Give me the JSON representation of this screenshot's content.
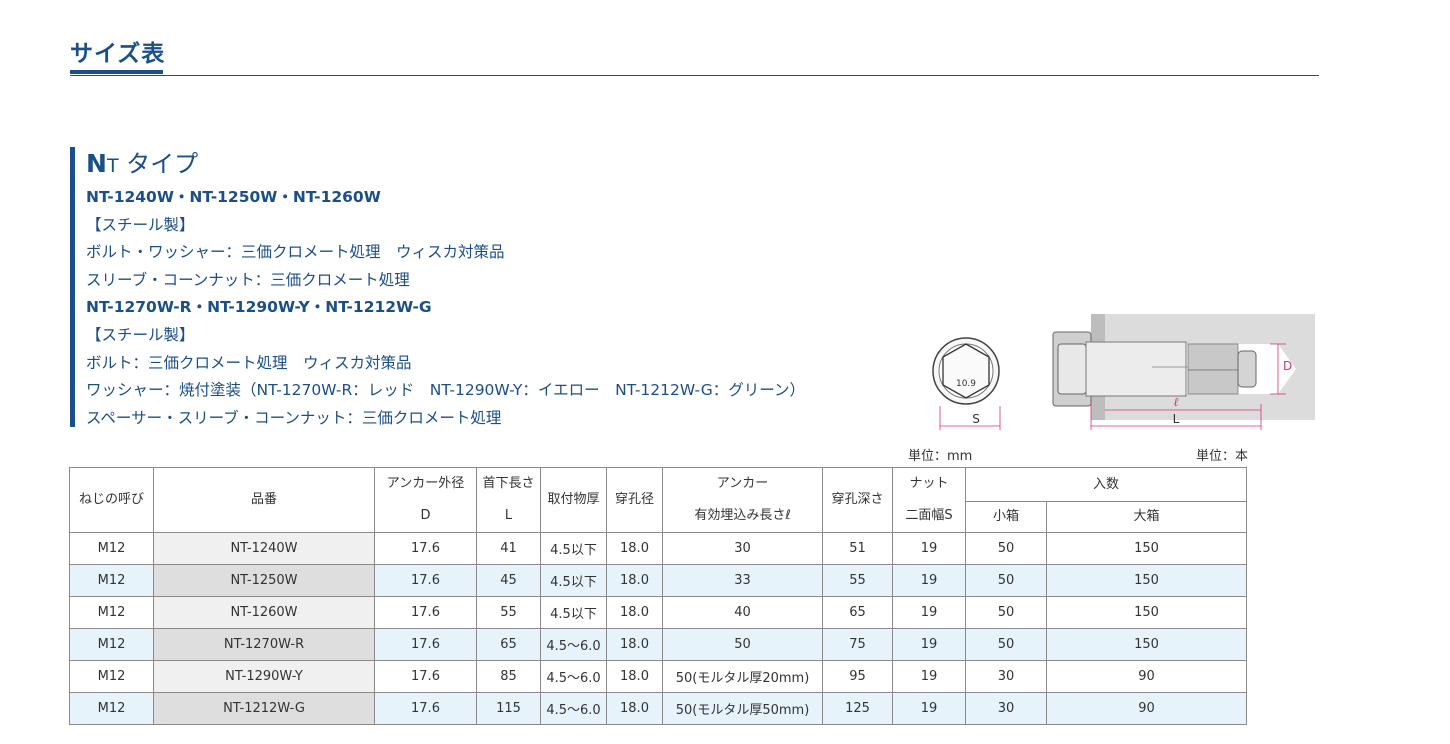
{
  "page": {
    "title": "サイズ表"
  },
  "type_block": {
    "heading_main": "N",
    "heading_sub": "T",
    "heading_rest": " タイプ",
    "lines": [
      "NT-1240W・NT-1250W・NT-1260W",
      "【スチール製】",
      "ボルト・ワッシャー：三価クロメート処理　ウィスカ対策品",
      "スリーブ・コーンナット：三価クロメート処理",
      "NT-1270W-R・NT-1290W-Y・NT-1212W-G",
      "【スチール製】",
      "ボルト：三価クロメート処理　ウィスカ対策品",
      "ワッシャー：焼付塗装（NT-1270W-R：レッド　NT-1290W-Y：イエロー　NT-1212W-G：グリーン）",
      "スペーサー・スリーブ・コーンナット：三価クロメート処理"
    ]
  },
  "diagram": {
    "bolt_mark": "10.9",
    "label_s": "S",
    "label_d": "D",
    "label_l_small": "ℓ",
    "label_l": "L"
  },
  "units": {
    "left": "単位：mm",
    "right": "単位：本"
  },
  "table": {
    "headers": {
      "thread": "ねじの呼び",
      "part_no": "品番",
      "outer_d_1": "アンカー外径",
      "outer_d_2": "D",
      "length_1": "首下長さ",
      "length_2": "L",
      "fixture": "取付物厚",
      "hole_d": "穿孔径",
      "embed_1": "アンカー",
      "embed_2": "有効埋込み長さℓ",
      "depth": "穿孔深さ",
      "nut_1": "ナット",
      "nut_2": "二面幅S",
      "qty": "入数",
      "qty_small": "小箱",
      "qty_large": "大箱"
    },
    "rows": [
      {
        "thread": "M12",
        "part_no": "NT-1240W",
        "outer_d": "17.6",
        "length": "41",
        "fixture": "4.5以下",
        "hole_d": "18.0",
        "embed": "30",
        "depth": "51",
        "nut": "19",
        "small": "50",
        "large": "150"
      },
      {
        "thread": "M12",
        "part_no": "NT-1250W",
        "outer_d": "17.6",
        "length": "45",
        "fixture": "4.5以下",
        "hole_d": "18.0",
        "embed": "33",
        "depth": "55",
        "nut": "19",
        "small": "50",
        "large": "150"
      },
      {
        "thread": "M12",
        "part_no": "NT-1260W",
        "outer_d": "17.6",
        "length": "55",
        "fixture": "4.5以下",
        "hole_d": "18.0",
        "embed": "40",
        "depth": "65",
        "nut": "19",
        "small": "50",
        "large": "150"
      },
      {
        "thread": "M12",
        "part_no": "NT-1270W-R",
        "outer_d": "17.6",
        "length": "65",
        "fixture": "4.5～6.0",
        "hole_d": "18.0",
        "embed": "50",
        "depth": "75",
        "nut": "19",
        "small": "50",
        "large": "150"
      },
      {
        "thread": "M12",
        "part_no": "NT-1290W-Y",
        "outer_d": "17.6",
        "length": "85",
        "fixture": "4.5～6.0",
        "hole_d": "18.0",
        "embed": "50(モルタル厚20mm)",
        "depth": "95",
        "nut": "19",
        "small": "30",
        "large": "90"
      },
      {
        "thread": "M12",
        "part_no": "NT-1212W-G",
        "outer_d": "17.6",
        "length": "115",
        "fixture": "4.5～6.0",
        "hole_d": "18.0",
        "embed": "50(モルタル厚50mm)",
        "depth": "125",
        "nut": "19",
        "small": "30",
        "large": "90"
      }
    ]
  },
  "colors": {
    "brand_blue": "#1b4f8a",
    "row_alt": "#e6f3fb",
    "dimension_pink": "#d6337a"
  }
}
